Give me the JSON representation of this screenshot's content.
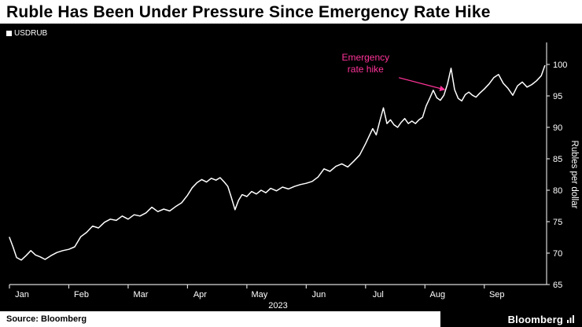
{
  "header": {
    "title": "Ruble Has Been Under Pressure Since Emergency Rate Hike"
  },
  "legend": {
    "label": "USDRUB"
  },
  "chart_data": {
    "type": "line",
    "title": "Ruble Has Been Under Pressure Since Emergency Rate Hike",
    "xlabel": "2023",
    "ylabel": "Rubles per dollar",
    "ylim": [
      65,
      100
    ],
    "yticks": [
      65,
      70,
      75,
      80,
      85,
      90,
      95,
      100
    ],
    "x_domain": [
      0,
      9.05
    ],
    "xtick_positions": [
      0,
      1,
      2,
      3,
      4,
      5,
      6,
      7,
      8
    ],
    "xtick_labels": [
      "Jan",
      "Feb",
      "Mar",
      "Apr",
      "May",
      "Jun",
      "Jul",
      "Aug",
      "Sep"
    ],
    "grid": false,
    "legend_position": "top-left",
    "line_color": "#ffffff",
    "axis_color": "#d8d8d8",
    "text_color": "#ffffff",
    "background": "#000000",
    "series": [
      {
        "name": "USDRUB",
        "x": [
          0,
          0.06,
          0.12,
          0.2,
          0.28,
          0.36,
          0.44,
          0.52,
          0.6,
          0.7,
          0.8,
          0.9,
          1,
          1.1,
          1.2,
          1.3,
          1.4,
          1.5,
          1.6,
          1.7,
          1.8,
          1.9,
          2,
          2.1,
          2.2,
          2.3,
          2.4,
          2.5,
          2.6,
          2.7,
          2.8,
          2.9,
          3,
          3.08,
          3.16,
          3.24,
          3.32,
          3.4,
          3.48,
          3.55,
          3.62,
          3.68,
          3.74,
          3.8,
          3.86,
          3.92,
          4,
          4.08,
          4.16,
          4.24,
          4.32,
          4.4,
          4.5,
          4.6,
          4.7,
          4.8,
          4.9,
          5,
          5.1,
          5.2,
          5.3,
          5.4,
          5.5,
          5.6,
          5.7,
          5.8,
          5.9,
          6,
          6.06,
          6.12,
          6.18,
          6.24,
          6.3,
          6.36,
          6.42,
          6.48,
          6.54,
          6.6,
          6.66,
          6.72,
          6.78,
          6.84,
          6.9,
          6.96,
          7.02,
          7.08,
          7.14,
          7.2,
          7.26,
          7.32,
          7.38,
          7.44,
          7.5,
          7.56,
          7.62,
          7.68,
          7.74,
          7.8,
          7.86,
          7.92,
          8,
          8.08,
          8.16,
          8.24,
          8.32,
          8.4,
          8.48,
          8.56,
          8.64,
          8.72,
          8.8,
          8.88,
          8.96,
          9.02
        ],
        "values": [
          72.5,
          71,
          69.3,
          68.9,
          69.6,
          70.4,
          69.7,
          69.4,
          69,
          69.6,
          70.1,
          70.4,
          70.6,
          71,
          72.6,
          73.3,
          74.3,
          74,
          74.9,
          75.4,
          75.2,
          75.9,
          75.4,
          76.1,
          75.9,
          76.4,
          77.3,
          76.6,
          77,
          76.7,
          77.4,
          78,
          79.2,
          80.4,
          81.2,
          81.7,
          81.3,
          81.9,
          81.6,
          82,
          81.3,
          80.6,
          78.8,
          76.9,
          78.4,
          79.3,
          79,
          79.8,
          79.4,
          80,
          79.6,
          80.3,
          79.9,
          80.5,
          80.2,
          80.6,
          80.9,
          81.1,
          81.4,
          82.1,
          83.4,
          83,
          83.8,
          84.2,
          83.7,
          84.6,
          85.6,
          87.4,
          88.6,
          89.8,
          88.8,
          91,
          93.1,
          90.6,
          91.2,
          90.4,
          90,
          90.8,
          91.4,
          90.6,
          91,
          90.6,
          91.2,
          91.6,
          93.4,
          94.6,
          95.9,
          94.7,
          94.3,
          95.1,
          96.9,
          99.4,
          96,
          94.6,
          94.2,
          95.2,
          95.6,
          95.1,
          94.8,
          95.4,
          96.1,
          96.9,
          97.9,
          98.4,
          97,
          96.2,
          95.1,
          96.6,
          97.2,
          96.4,
          96.8,
          97.4,
          98.2,
          99.8
        ]
      }
    ],
    "annotation": {
      "lines": [
        "Emergency",
        "rate hike"
      ],
      "color": "#ff3399",
      "x": 6.0,
      "y": 100.6,
      "arrow": {
        "x1": 6.56,
        "y1": 97.9,
        "x2": 7.33,
        "y2": 96.0
      }
    }
  },
  "footer": {
    "source": "Source: Bloomberg",
    "brand": "Bloomberg"
  },
  "colors": {
    "background": "#000000",
    "line": "#ffffff",
    "axis": "#d8d8d8",
    "annotation_pink": "#ff3399"
  }
}
